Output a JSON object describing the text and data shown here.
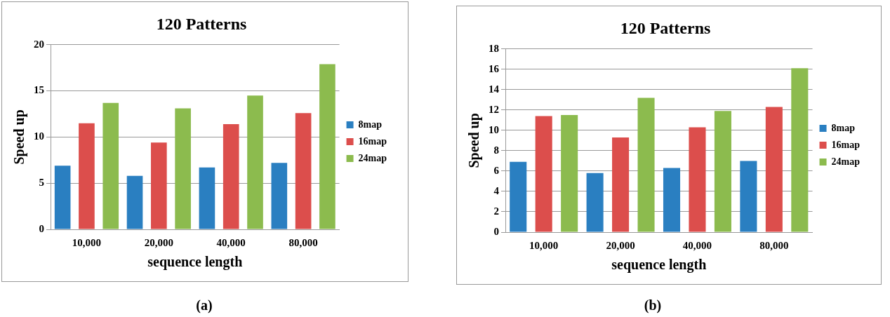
{
  "chart_data": [
    {
      "type": "bar",
      "title": "120 Patterns",
      "xlabel": "sequence length",
      "ylabel": "Speed up",
      "categories": [
        "10,000",
        "20,000",
        "40,000",
        "80,000"
      ],
      "series": [
        {
          "name": "8map",
          "color": "#2a7fc1",
          "values": [
            6.9,
            5.8,
            6.7,
            7.2
          ]
        },
        {
          "name": "16map",
          "color": "#dc4e4c",
          "values": [
            11.5,
            9.4,
            11.4,
            12.6
          ]
        },
        {
          "name": "24map",
          "color": "#8cbb4e",
          "values": [
            13.7,
            13.1,
            14.5,
            17.9
          ]
        }
      ],
      "ylim": [
        0,
        20
      ],
      "yticks": [
        0,
        5,
        10,
        15,
        20
      ],
      "grid": "y",
      "legend": "right",
      "annotations": [
        "(a)"
      ]
    },
    {
      "type": "bar",
      "title": "120 Patterns",
      "xlabel": "sequence length",
      "ylabel": "Speed up",
      "categories": [
        "10,000",
        "20,000",
        "40,000",
        "80,000"
      ],
      "series": [
        {
          "name": "8map",
          "color": "#2a7fc1",
          "values": [
            6.9,
            5.8,
            6.3,
            7.0
          ]
        },
        {
          "name": "16map",
          "color": "#dc4e4c",
          "values": [
            11.4,
            9.3,
            10.3,
            12.3
          ]
        },
        {
          "name": "24map",
          "color": "#8cbb4e",
          "values": [
            11.5,
            13.2,
            11.9,
            16.1
          ]
        }
      ],
      "ylim": [
        0,
        18
      ],
      "yticks": [
        0,
        2,
        4,
        6,
        8,
        10,
        12,
        14,
        16,
        18
      ],
      "grid": "y",
      "legend": "right",
      "annotations": [
        "(b)"
      ]
    }
  ]
}
